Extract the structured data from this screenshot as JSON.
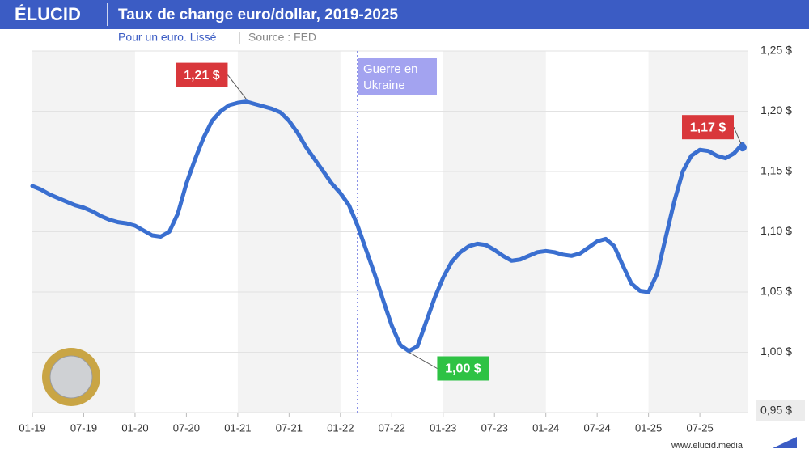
{
  "chart_data": {
    "type": "line",
    "brand": "ÉLUCID",
    "title": "Taux de change euro/dollar, 2019-2025",
    "subtitle": "Pour un euro. Lissé",
    "source": "Source : FED",
    "footer": "www.elucid.media",
    "x": [
      "2019-01",
      "2019-02",
      "2019-03",
      "2019-04",
      "2019-05",
      "2019-06",
      "2019-07",
      "2019-08",
      "2019-09",
      "2019-10",
      "2019-11",
      "2019-12",
      "2020-01",
      "2020-02",
      "2020-03",
      "2020-04",
      "2020-05",
      "2020-06",
      "2020-07",
      "2020-08",
      "2020-09",
      "2020-10",
      "2020-11",
      "2020-12",
      "2021-01",
      "2021-02",
      "2021-03",
      "2021-04",
      "2021-05",
      "2021-06",
      "2021-07",
      "2021-08",
      "2021-09",
      "2021-10",
      "2021-11",
      "2021-12",
      "2022-01",
      "2022-02",
      "2022-03",
      "2022-04",
      "2022-05",
      "2022-06",
      "2022-07",
      "2022-08",
      "2022-09",
      "2022-10",
      "2022-11",
      "2022-12",
      "2023-01",
      "2023-02",
      "2023-03",
      "2023-04",
      "2023-05",
      "2023-06",
      "2023-07",
      "2023-08",
      "2023-09",
      "2023-10",
      "2023-11",
      "2023-12",
      "2024-01",
      "2024-02",
      "2024-03",
      "2024-04",
      "2024-05",
      "2024-06",
      "2024-07",
      "2024-08",
      "2024-09",
      "2024-10",
      "2024-11",
      "2024-12",
      "2025-01",
      "2025-02",
      "2025-03",
      "2025-04",
      "2025-05",
      "2025-06",
      "2025-07",
      "2025-08",
      "2025-09",
      "2025-10",
      "2025-11",
      "2025-12"
    ],
    "series": [
      {
        "color": "#3a6fd0",
        "values": [
          1.138,
          1.135,
          1.131,
          1.128,
          1.125,
          1.122,
          1.12,
          1.117,
          1.113,
          1.11,
          1.108,
          1.107,
          1.105,
          1.101,
          1.097,
          1.096,
          1.1,
          1.115,
          1.14,
          1.16,
          1.178,
          1.192,
          1.2,
          1.205,
          1.207,
          1.208,
          1.206,
          1.204,
          1.202,
          1.199,
          1.192,
          1.182,
          1.17,
          1.16,
          1.15,
          1.14,
          1.132,
          1.122,
          1.105,
          1.085,
          1.065,
          1.043,
          1.022,
          1.006,
          1.001,
          1.005,
          1.025,
          1.045,
          1.062,
          1.075,
          1.083,
          1.088,
          1.09,
          1.089,
          1.085,
          1.08,
          1.076,
          1.077,
          1.08,
          1.083,
          1.084,
          1.083,
          1.081,
          1.08,
          1.082,
          1.087,
          1.092,
          1.094,
          1.088,
          1.072,
          1.057,
          1.051,
          1.05,
          1.065,
          1.095,
          1.125,
          1.15,
          1.163,
          1.168,
          1.167,
          1.163,
          1.161,
          1.165,
          1.173
        ]
      }
    ],
    "xlim": [
      "2019-01",
      "2025-12"
    ],
    "xticks": [
      {
        "value": "2019-01",
        "label": "01-19"
      },
      {
        "value": "2019-07",
        "label": "07-19"
      },
      {
        "value": "2020-01",
        "label": "01-20"
      },
      {
        "value": "2020-07",
        "label": "07-20"
      },
      {
        "value": "2021-01",
        "label": "01-21"
      },
      {
        "value": "2021-07",
        "label": "07-21"
      },
      {
        "value": "2022-01",
        "label": "01-22"
      },
      {
        "value": "2022-07",
        "label": "07-22"
      },
      {
        "value": "2023-01",
        "label": "01-23"
      },
      {
        "value": "2023-07",
        "label": "07-23"
      },
      {
        "value": "2024-01",
        "label": "01-24"
      },
      {
        "value": "2024-07",
        "label": "07-24"
      },
      {
        "value": "2025-01",
        "label": "01-25"
      },
      {
        "value": "2025-07",
        "label": "07-25"
      }
    ],
    "ylim": [
      0.95,
      1.25
    ],
    "yticks": [
      {
        "value": 0.95,
        "label": "0,95 $"
      },
      {
        "value": 1.0,
        "label": "1,00 $"
      },
      {
        "value": 1.05,
        "label": "1,05 $"
      },
      {
        "value": 1.1,
        "label": "1,10 $"
      },
      {
        "value": 1.15,
        "label": "1,15 $"
      },
      {
        "value": 1.2,
        "label": "1,20 $"
      },
      {
        "value": 1.25,
        "label": "1,25 $"
      }
    ],
    "grid": true,
    "event": {
      "x": "2022-03",
      "label": "Guerre en Ukraine"
    },
    "annotations": [
      {
        "x": "2021-02",
        "value": 1.21,
        "label": "1,21 $",
        "color": "#d9373b"
      },
      {
        "x": "2022-09",
        "value": 1.0,
        "label": "1,00 $",
        "color": "#2ec244"
      },
      {
        "x": "2025-12",
        "value": 1.17,
        "label": "1,17 $",
        "color": "#d9373b"
      }
    ]
  }
}
